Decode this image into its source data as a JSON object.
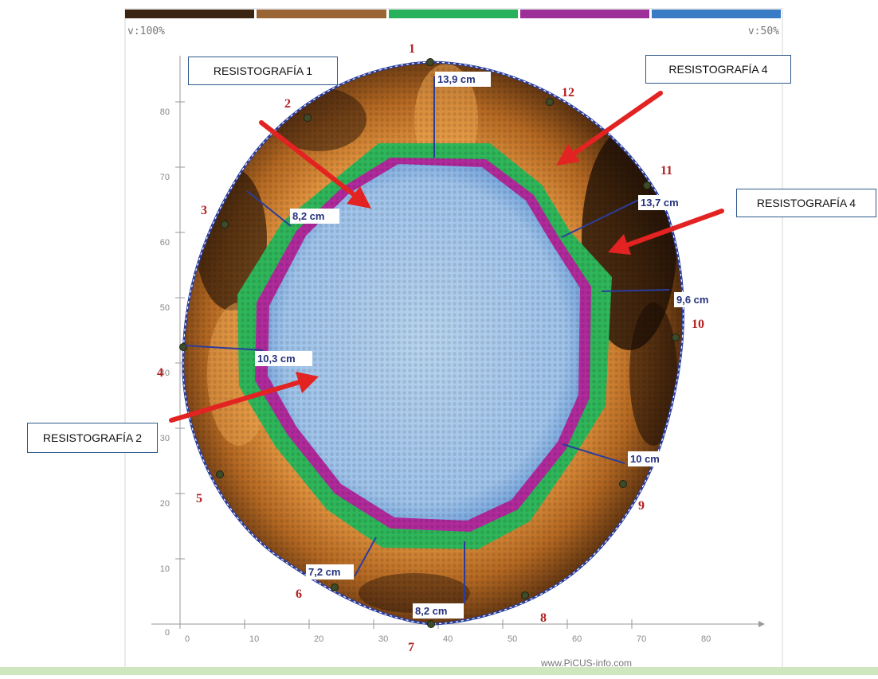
{
  "scale_labels": {
    "left": "v:100%",
    "right": "v:50%"
  },
  "color_scale": [
    "#3a2412",
    "#9a6434",
    "#27b15a",
    "#9c2f98",
    "#3a7bc6"
  ],
  "y_ticks": [
    "0",
    "10",
    "20",
    "30",
    "40",
    "50",
    "60",
    "70",
    "80"
  ],
  "x_ticks": [
    "0",
    "10",
    "20",
    "30",
    "40",
    "50",
    "60",
    "70",
    "80"
  ],
  "sensors": [
    "1",
    "2",
    "3",
    "4",
    "5",
    "6",
    "7",
    "8",
    "9",
    "10",
    "11",
    "12"
  ],
  "measurements": [
    "13,9 cm",
    "8,2 cm",
    "13,7 cm",
    "9,6 cm",
    "10,3 cm",
    "10 cm",
    "7,2 cm",
    "8,2 cm"
  ],
  "callouts": [
    "RESISTOGRAFÍA 1",
    "RESISTOGRAFÍA 4",
    "RESISTOGRAFÍA 4",
    "RESISTOGRAFÍA 2"
  ],
  "watermark": "www.PiCUS-info.com",
  "colors": {
    "outline": "#2b3d9b",
    "arrow": "#e32222",
    "sensor_label": "#b32020",
    "axis": "#9a9a9a"
  }
}
